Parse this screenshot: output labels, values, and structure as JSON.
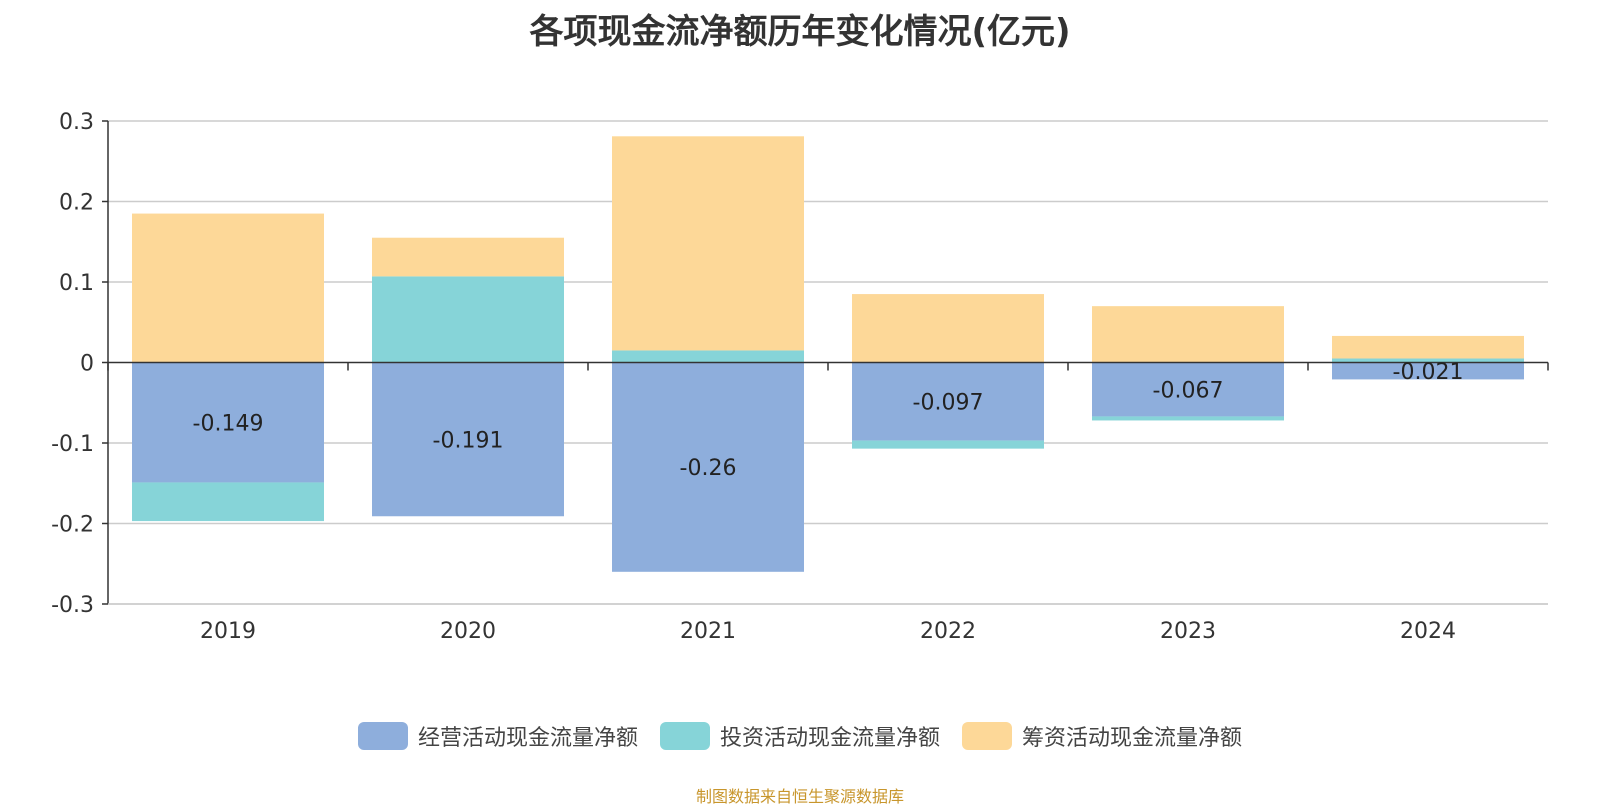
{
  "chart_data": {
    "type": "bar",
    "stacked": true,
    "title": "各项现金流净额历年变化情况(亿元)",
    "categories": [
      "2019",
      "2020",
      "2021",
      "2022",
      "2023",
      "2024"
    ],
    "ylim": [
      -0.3,
      0.3
    ],
    "yticks": [
      "0.3",
      "0.2",
      "0.1",
      "0",
      "-0.1",
      "-0.2",
      "-0.3"
    ],
    "ytick_values": [
      0.3,
      0.2,
      0.1,
      0,
      -0.1,
      -0.2,
      -0.3
    ],
    "grid": true,
    "legend_position": "bottom",
    "series": [
      {
        "name": "经营活动现金流量净额",
        "color": "#8eaedc",
        "values": [
          -0.149,
          -0.191,
          -0.26,
          -0.097,
          -0.067,
          -0.021
        ],
        "labels": [
          "-0.149",
          "-0.191",
          "-0.26",
          "-0.097",
          "-0.067",
          "-0.021"
        ]
      },
      {
        "name": "投资活动现金流量净额",
        "color": "#86d4d8",
        "values": [
          -0.048,
          0.107,
          0.015,
          -0.01,
          -0.005,
          0.005
        ]
      },
      {
        "name": "筹资活动现金流量净额",
        "color": "#fdd898",
        "values": [
          0.185,
          0.048,
          0.266,
          0.085,
          0.07,
          0.028
        ]
      }
    ]
  },
  "source_note": "制图数据来自恒生聚源数据库"
}
